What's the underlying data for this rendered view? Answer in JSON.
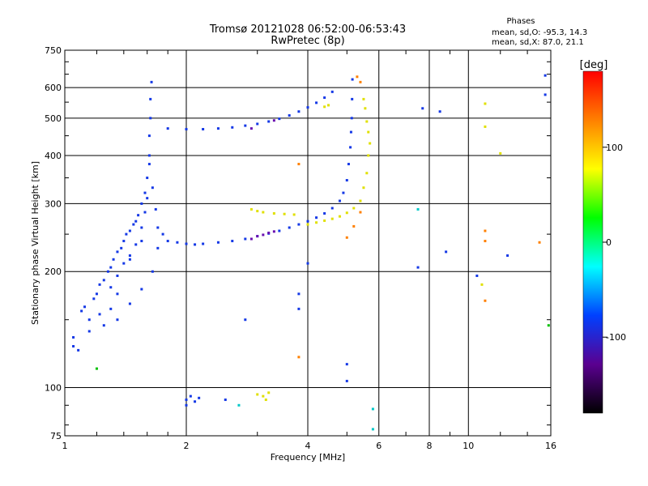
{
  "chart_data": {
    "type": "scatter",
    "title": "Tromsø 20121028 06:52:00-06:53:43",
    "subtitle": "RwPretec (8p)",
    "xlabel": "Frequency [MHz]",
    "ylabel": "Stationary phase Virtual Height [km]",
    "x_scale": "log",
    "y_scale": "log",
    "xlim": [
      1,
      16
    ],
    "ylim": [
      75,
      750
    ],
    "x_ticks": [
      1,
      2,
      4,
      6,
      8,
      10,
      16
    ],
    "y_ticks": [
      75,
      100,
      200,
      300,
      400,
      500,
      600,
      750
    ],
    "grid": true,
    "phases_title": "Phases",
    "phases_lines": [
      "mean, sd,O: -95.3, 14.3",
      "mean, sd,X:  87.0, 21.1"
    ],
    "colorbar": {
      "label": "[deg]",
      "ticks": [
        100,
        0,
        -100
      ],
      "range": [
        -180,
        180
      ],
      "colors": [
        "#000000",
        "#5a0090",
        "#0040ff",
        "#00ffff",
        "#00ff00",
        "#ffff00",
        "#ff8000",
        "#ff0000"
      ]
    },
    "series": [
      {
        "color": "#1438e6",
        "points": [
          [
            1.05,
            135
          ],
          [
            1.05,
            128
          ],
          [
            1.08,
            125
          ],
          [
            1.1,
            158
          ],
          [
            1.12,
            162
          ],
          [
            1.15,
            150
          ],
          [
            1.18,
            170
          ],
          [
            1.2,
            175
          ],
          [
            1.22,
            185
          ],
          [
            1.25,
            190
          ],
          [
            1.28,
            200
          ],
          [
            1.3,
            205
          ],
          [
            1.3,
            182
          ],
          [
            1.32,
            215
          ],
          [
            1.35,
            225
          ],
          [
            1.35,
            195
          ],
          [
            1.38,
            230
          ],
          [
            1.4,
            240
          ],
          [
            1.4,
            210
          ],
          [
            1.42,
            250
          ],
          [
            1.45,
            255
          ],
          [
            1.45,
            220
          ],
          [
            1.48,
            265
          ],
          [
            1.5,
            270
          ],
          [
            1.5,
            235
          ],
          [
            1.52,
            280
          ],
          [
            1.55,
            300
          ],
          [
            1.55,
            260
          ],
          [
            1.58,
            320
          ],
          [
            1.58,
            285
          ],
          [
            1.6,
            350
          ],
          [
            1.6,
            310
          ],
          [
            1.62,
            400
          ],
          [
            1.62,
            450
          ],
          [
            1.63,
            500
          ],
          [
            1.63,
            560
          ],
          [
            1.64,
            620
          ],
          [
            1.62,
            380
          ],
          [
            1.65,
            330
          ],
          [
            1.68,
            290
          ],
          [
            1.7,
            260
          ],
          [
            1.75,
            250
          ],
          [
            1.8,
            240
          ],
          [
            1.9,
            238
          ],
          [
            2.0,
            236
          ],
          [
            2.1,
            235
          ],
          [
            2.2,
            236
          ],
          [
            2.4,
            238
          ],
          [
            2.6,
            240
          ],
          [
            2.8,
            243
          ],
          [
            3.0,
            247
          ],
          [
            3.2,
            251
          ],
          [
            3.4,
            255
          ],
          [
            3.6,
            260
          ],
          [
            3.8,
            265
          ],
          [
            4.0,
            270
          ],
          [
            4.2,
            276
          ],
          [
            4.4,
            283
          ],
          [
            4.6,
            292
          ],
          [
            4.8,
            305
          ],
          [
            4.9,
            320
          ],
          [
            5.0,
            345
          ],
          [
            5.05,
            380
          ],
          [
            5.1,
            420
          ],
          [
            5.12,
            460
          ],
          [
            5.14,
            500
          ],
          [
            5.15,
            560
          ],
          [
            5.16,
            630
          ],
          [
            1.8,
            470
          ],
          [
            2.0,
            468
          ],
          [
            2.2,
            468
          ],
          [
            2.4,
            470
          ],
          [
            2.6,
            473
          ],
          [
            2.8,
            478
          ],
          [
            3.0,
            483
          ],
          [
            3.2,
            490
          ],
          [
            3.4,
            498
          ],
          [
            3.6,
            508
          ],
          [
            3.8,
            520
          ],
          [
            4.0,
            533
          ],
          [
            4.2,
            548
          ],
          [
            4.4,
            565
          ],
          [
            4.6,
            585
          ],
          [
            1.15,
            140
          ],
          [
            1.25,
            145
          ],
          [
            1.35,
            150
          ],
          [
            1.45,
            165
          ],
          [
            1.55,
            180
          ],
          [
            1.65,
            200
          ],
          [
            1.7,
            230
          ],
          [
            1.55,
            240
          ],
          [
            1.45,
            215
          ],
          [
            1.35,
            175
          ],
          [
            1.3,
            160
          ],
          [
            1.22,
            155
          ],
          [
            2.0,
            93
          ],
          [
            2.05,
            95
          ],
          [
            2.1,
            92
          ],
          [
            2.15,
            94
          ],
          [
            2.0,
            90
          ],
          [
            2.5,
            93
          ],
          [
            3.8,
            175
          ],
          [
            3.8,
            160
          ],
          [
            2.8,
            150
          ],
          [
            4.0,
            210
          ],
          [
            5.0,
            104
          ],
          [
            5.0,
            115
          ],
          [
            7.5,
            205
          ],
          [
            7.7,
            530
          ],
          [
            8.5,
            520
          ],
          [
            8.8,
            225
          ],
          [
            10.5,
            195
          ],
          [
            12.5,
            220
          ],
          [
            15.5,
            645
          ],
          [
            15.5,
            575
          ]
        ]
      },
      {
        "color": "#6a10b0",
        "points": [
          [
            2.9,
            243
          ],
          [
            3.0,
            247
          ],
          [
            3.1,
            249
          ],
          [
            3.2,
            252
          ],
          [
            3.3,
            254
          ],
          [
            2.9,
            470
          ],
          [
            3.3,
            493
          ]
        ]
      },
      {
        "color": "#e0e000",
        "points": [
          [
            2.9,
            290
          ],
          [
            3.0,
            287
          ],
          [
            3.1,
            285
          ],
          [
            3.3,
            283
          ],
          [
            3.5,
            282
          ],
          [
            3.7,
            281
          ],
          [
            4.0,
            265
          ],
          [
            4.2,
            268
          ],
          [
            4.4,
            271
          ],
          [
            4.6,
            274
          ],
          [
            4.8,
            278
          ],
          [
            5.0,
            284
          ],
          [
            5.2,
            292
          ],
          [
            5.4,
            305
          ],
          [
            5.5,
            330
          ],
          [
            5.6,
            360
          ],
          [
            5.65,
            400
          ],
          [
            5.7,
            430
          ],
          [
            5.65,
            460
          ],
          [
            5.6,
            490
          ],
          [
            5.55,
            530
          ],
          [
            5.5,
            560
          ],
          [
            4.4,
            535
          ],
          [
            4.5,
            540
          ],
          [
            3.1,
            95
          ],
          [
            3.2,
            97
          ],
          [
            3.15,
            93
          ],
          [
            3.0,
            96
          ],
          [
            11.0,
            545
          ],
          [
            11.0,
            475
          ],
          [
            12.0,
            405
          ],
          [
            10.8,
            185
          ]
        ]
      },
      {
        "color": "#ff8000",
        "points": [
          [
            5.3,
            640
          ],
          [
            5.4,
            620
          ],
          [
            5.0,
            245
          ],
          [
            5.2,
            262
          ],
          [
            5.4,
            285
          ],
          [
            3.8,
            120
          ],
          [
            3.8,
            380
          ],
          [
            11.0,
            255
          ],
          [
            11.0,
            240
          ],
          [
            11.0,
            168
          ],
          [
            15.0,
            238
          ]
        ]
      },
      {
        "color": "#00c8c8",
        "points": [
          [
            7.5,
            290
          ],
          [
            5.8,
            88
          ],
          [
            5.8,
            78
          ],
          [
            2.7,
            90
          ]
        ]
      },
      {
        "color": "#00c000",
        "points": [
          [
            1.2,
            112
          ],
          [
            15.8,
            145
          ]
        ]
      }
    ]
  }
}
